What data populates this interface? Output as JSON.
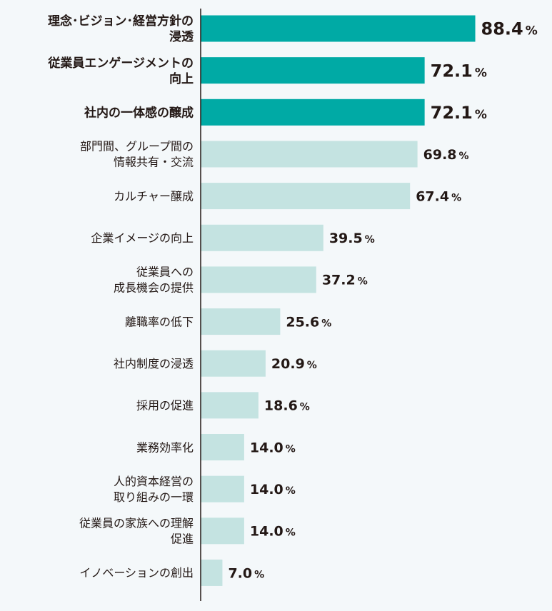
{
  "chart_data": {
    "type": "bar",
    "orientation": "horizontal",
    "unit": "%",
    "xlim": [
      0,
      100
    ],
    "colors": {
      "highlight": "#00aaa5",
      "normal": "#c4e3e1",
      "axis": "#231815",
      "text": "#231815",
      "background": "#f4f8fa"
    },
    "categories": [
      {
        "lines": [
          "理念･ビジョン･経営方針の",
          "浸透"
        ],
        "value": 88.4,
        "display": "88.4",
        "highlight": true
      },
      {
        "lines": [
          "従業員エンゲージメントの",
          "向上"
        ],
        "value": 72.1,
        "display": "72.1",
        "highlight": true
      },
      {
        "lines": [
          "社内の一体感の醸成"
        ],
        "value": 72.1,
        "display": "72.1",
        "highlight": true
      },
      {
        "lines": [
          "部門間、グループ間の",
          "情報共有・交流"
        ],
        "value": 69.8,
        "display": "69.8",
        "highlight": false
      },
      {
        "lines": [
          "カルチャー醸成"
        ],
        "value": 67.4,
        "display": "67.4",
        "highlight": false
      },
      {
        "lines": [
          "企業イメージの向上"
        ],
        "value": 39.5,
        "display": "39.5",
        "highlight": false
      },
      {
        "lines": [
          "従業員への",
          "成長機会の提供"
        ],
        "value": 37.2,
        "display": "37.2",
        "highlight": false
      },
      {
        "lines": [
          "離職率の低下"
        ],
        "value": 25.6,
        "display": "25.6",
        "highlight": false
      },
      {
        "lines": [
          "社内制度の浸透"
        ],
        "value": 20.9,
        "display": "20.9",
        "highlight": false
      },
      {
        "lines": [
          "採用の促進"
        ],
        "value": 18.6,
        "display": "18.6",
        "highlight": false
      },
      {
        "lines": [
          "業務効率化"
        ],
        "value": 14.0,
        "display": "14.0",
        "highlight": false
      },
      {
        "lines": [
          "人的資本経営の",
          "取り組みの一環"
        ],
        "value": 14.0,
        "display": "14.0",
        "highlight": false
      },
      {
        "lines": [
          "従業員の家族への理解",
          "促進"
        ],
        "value": 14.0,
        "display": "14.0",
        "highlight": false
      },
      {
        "lines": [
          "イノベーションの創出"
        ],
        "value": 7.0,
        "display": "7.0",
        "highlight": false
      }
    ]
  }
}
